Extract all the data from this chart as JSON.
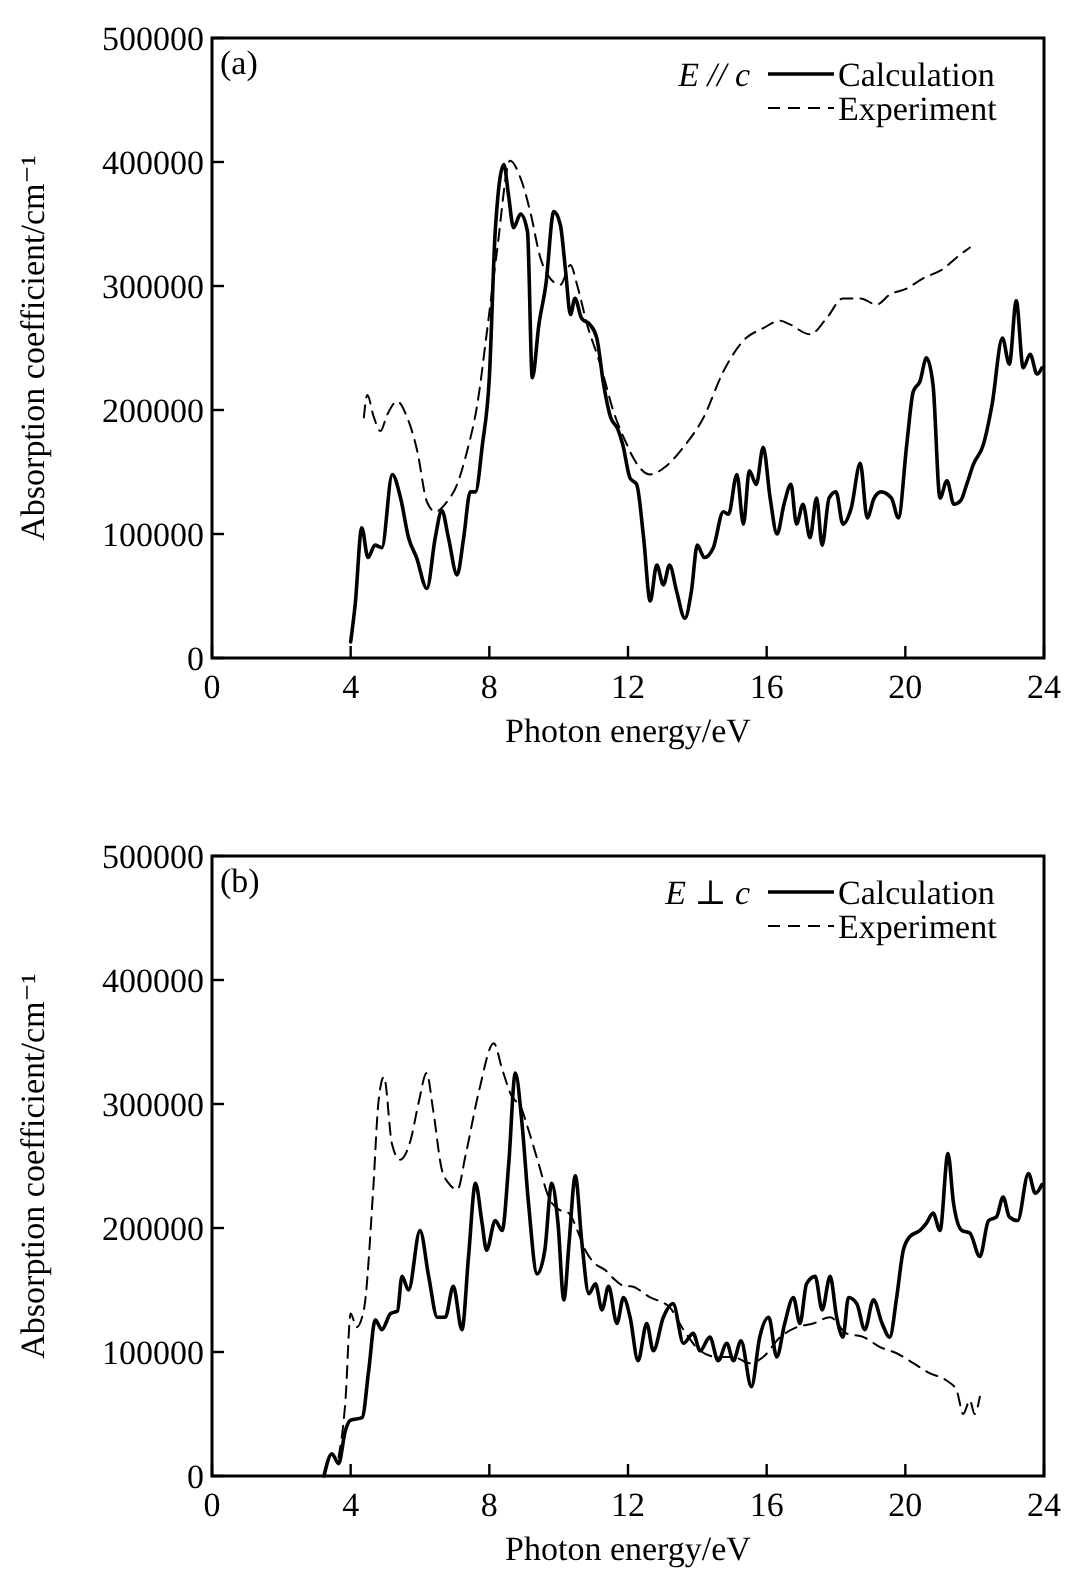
{
  "chart_data": [
    {
      "type": "line",
      "title": "(a)",
      "legend_title": "E // c",
      "xlabel": "Photon energy/eV",
      "ylabel": "Absorption coefficient/cm⁻¹",
      "xlim": [
        0,
        24
      ],
      "xticks": [
        0,
        4,
        8,
        12,
        16,
        20,
        24
      ],
      "ylim": [
        0,
        500000
      ],
      "yticks": [
        0,
        100000,
        200000,
        300000,
        400000,
        500000
      ],
      "grid": false,
      "legend": "top right",
      "marker": "none",
      "series": [
        {
          "name": "Calculation",
          "color": "#000000",
          "line_style": "solid",
          "x": [
            4.0,
            4.13,
            4.32,
            4.5,
            4.7,
            4.9,
            5.2,
            5.44,
            5.67,
            5.9,
            6.2,
            6.44,
            6.63,
            6.82,
            7.07,
            7.26,
            7.45,
            7.6,
            7.8,
            8.0,
            8.17,
            8.42,
            8.55,
            8.7,
            8.9,
            9.1,
            9.24,
            9.43,
            9.63,
            9.86,
            10.05,
            10.2,
            10.34,
            10.47,
            10.66,
            10.9,
            11.1,
            11.3,
            11.5,
            11.7,
            11.85,
            12.06,
            12.25,
            12.45,
            12.64,
            12.83,
            13.02,
            13.2,
            13.4,
            13.64,
            13.83,
            14.0,
            14.2,
            14.46,
            14.75,
            14.9,
            15.14,
            15.33,
            15.5,
            15.7,
            15.9,
            16.1,
            16.3,
            16.5,
            16.7,
            16.86,
            17.05,
            17.25,
            17.44,
            17.6,
            17.8,
            18.0,
            18.2,
            18.44,
            18.7,
            18.9,
            19.1,
            19.3,
            19.6,
            19.8,
            20.04,
            20.23,
            20.42,
            20.61,
            20.8,
            21.0,
            21.2,
            21.4,
            21.6,
            21.77,
            21.96,
            22.25,
            22.5,
            22.8,
            23.0,
            23.2,
            23.4,
            23.6,
            23.8,
            23.94
          ],
          "values": [
            13000,
            43000,
            105000,
            81000,
            91000,
            89000,
            148000,
            129000,
            97000,
            81000,
            56000,
            97000,
            119000,
            97000,
            67000,
            97000,
            134000,
            134000,
            172000,
            226000,
            344000,
            398000,
            374000,
            347000,
            358000,
            344000,
            226000,
            269000,
            301000,
            360000,
            349000,
            312000,
            277000,
            290000,
            274000,
            269000,
            258000,
            220000,
            194000,
            185000,
            172000,
            145000,
            140000,
            97000,
            46000,
            75000,
            59000,
            75000,
            54000,
            32000,
            54000,
            91000,
            81000,
            89000,
            118000,
            116000,
            148000,
            108000,
            151000,
            140000,
            170000,
            129000,
            100000,
            124000,
            140000,
            108000,
            124000,
            97000,
            129000,
            91000,
            129000,
            134000,
            108000,
            121000,
            157000,
            113000,
            129000,
            134000,
            129000,
            113000,
            172000,
            215000,
            223000,
            242000,
            220000,
            129000,
            143000,
            124000,
            127000,
            140000,
            156000,
            172000,
            204000,
            258000,
            237000,
            288000,
            234000,
            245000,
            229000,
            234000
          ]
        },
        {
          "name": "Experiment",
          "color": "#000000",
          "line_style": "dashed",
          "x": [
            4.38,
            4.48,
            4.67,
            4.86,
            5.05,
            5.34,
            5.63,
            5.92,
            6.2,
            6.44,
            6.78,
            7.07,
            7.36,
            7.65,
            7.93,
            8.22,
            8.6,
            8.9,
            9.18,
            9.47,
            9.76,
            10.05,
            10.34,
            10.53,
            10.82,
            11.2,
            11.58,
            11.97,
            12.16,
            12.64,
            13.02,
            13.6,
            14.18,
            14.75,
            15.33,
            15.9,
            16.39,
            16.67,
            17.25,
            17.73,
            18.2,
            18.7,
            19.17,
            19.55,
            20.04,
            20.5,
            21.1,
            21.48,
            21.86
          ],
          "values": [
            194000,
            212000,
            194000,
            183000,
            196000,
            207000,
            194000,
            167000,
            126000,
            118000,
            126000,
            140000,
            167000,
            204000,
            263000,
            328000,
            401000,
            387000,
            360000,
            323000,
            306000,
            301000,
            317000,
            301000,
            269000,
            237000,
            199000,
            172000,
            161000,
            148000,
            153000,
            170000,
            194000,
            231000,
            256000,
            266000,
            272000,
            269000,
            261000,
            274000,
            290000,
            290000,
            285000,
            293000,
            298000,
            306000,
            314000,
            323000,
            331000
          ]
        }
      ]
    },
    {
      "type": "line",
      "title": "(b)",
      "legend_title": "E ⊥ c",
      "xlabel": "Photon energy/eV",
      "ylabel": "Absorption coefficient/cm⁻¹",
      "xlim": [
        0,
        24
      ],
      "xticks": [
        0,
        4,
        8,
        12,
        16,
        20,
        24
      ],
      "ylim": [
        0,
        500000
      ],
      "yticks": [
        0,
        100000,
        200000,
        300000,
        400000,
        500000
      ],
      "grid": false,
      "legend": "top right",
      "marker": "none",
      "series": [
        {
          "name": "Calculation",
          "color": "#000000",
          "line_style": "solid",
          "x": [
            3.23,
            3.46,
            3.65,
            3.85,
            4.0,
            4.33,
            4.52,
            4.71,
            4.9,
            5.15,
            5.35,
            5.48,
            5.67,
            6.0,
            6.25,
            6.5,
            6.73,
            6.96,
            7.21,
            7.4,
            7.6,
            7.79,
            7.92,
            8.17,
            8.37,
            8.56,
            8.75,
            8.94,
            9.13,
            9.38,
            9.6,
            9.8,
            9.98,
            10.15,
            10.3,
            10.48,
            10.67,
            10.87,
            11.06,
            11.25,
            11.44,
            11.68,
            11.87,
            12.06,
            12.29,
            12.54,
            12.73,
            13.02,
            13.3,
            13.6,
            13.88,
            14.08,
            14.36,
            14.6,
            14.85,
            15.04,
            15.26,
            15.56,
            15.8,
            16.06,
            16.29,
            16.52,
            16.77,
            16.96,
            17.15,
            17.4,
            17.6,
            17.83,
            18.02,
            18.2,
            18.36,
            18.6,
            18.83,
            19.08,
            19.33,
            19.55,
            19.75,
            19.94,
            20.13,
            20.42,
            20.61,
            20.8,
            21.0,
            21.23,
            21.39,
            21.63,
            21.86,
            22.15,
            22.4,
            22.63,
            22.82,
            23.0,
            23.24,
            23.55,
            23.75,
            23.94
          ],
          "values": [
            0,
            18000,
            10000,
            37000,
            45000,
            47000,
            85000,
            126000,
            118000,
            131000,
            133000,
            161000,
            150000,
            198000,
            161000,
            128000,
            128000,
            153000,
            118000,
            177000,
            236000,
            204000,
            182000,
            206000,
            198000,
            252000,
            325000,
            285000,
            220000,
            163000,
            182000,
            236000,
            204000,
            142000,
            188000,
            242000,
            188000,
            147000,
            155000,
            134000,
            153000,
            123000,
            144000,
            128000,
            93000,
            123000,
            101000,
            128000,
            139000,
            107000,
            115000,
            101000,
            112000,
            93000,
            107000,
            93000,
            109000,
            72000,
            112000,
            128000,
            96000,
            123000,
            144000,
            123000,
            155000,
            161000,
            134000,
            161000,
            128000,
            112000,
            144000,
            139000,
            118000,
            142000,
            123000,
            112000,
            144000,
            182000,
            193000,
            198000,
            204000,
            212000,
            198000,
            260000,
            220000,
            198000,
            196000,
            177000,
            206000,
            209000,
            225000,
            209000,
            206000,
            244000,
            228000,
            235000
          ]
        },
        {
          "name": "Experiment",
          "color": "#000000",
          "line_style": "dashed",
          "x": [
            3.65,
            3.85,
            4.0,
            4.17,
            4.38,
            4.65,
            4.8,
            4.96,
            5.19,
            5.42,
            5.73,
            5.96,
            6.19,
            6.38,
            6.63,
            6.83,
            7.08,
            7.31,
            7.69,
            8.13,
            8.37,
            8.65,
            8.9,
            9.13,
            9.42,
            9.71,
            10.0,
            10.29,
            10.54,
            10.77,
            11.06,
            11.35,
            11.63,
            11.92,
            12.06,
            12.64,
            13.2,
            13.6,
            14.08,
            14.56,
            15.04,
            15.52,
            15.9,
            16.39,
            16.87,
            17.34,
            17.83,
            18.3,
            18.8,
            19.27,
            19.75,
            20.23,
            20.7,
            21.19,
            21.48,
            21.67,
            21.86,
            22.0,
            22.15
          ],
          "values": [
            15000,
            61000,
            131000,
            120000,
            134000,
            231000,
            301000,
            322000,
            268000,
            255000,
            271000,
            301000,
            325000,
            295000,
            247000,
            236000,
            231000,
            258000,
            309000,
            349000,
            328000,
            306000,
            298000,
            279000,
            252000,
            225000,
            215000,
            212000,
            198000,
            182000,
            171000,
            166000,
            158000,
            153000,
            153000,
            144000,
            136000,
            118000,
            101000,
            96000,
            96000,
            91000,
            96000,
            112000,
            120000,
            123000,
            128000,
            115000,
            112000,
            104000,
            99000,
            91000,
            83000,
            77000,
            69000,
            50000,
            61000,
            50000,
            64000
          ]
        }
      ]
    }
  ]
}
